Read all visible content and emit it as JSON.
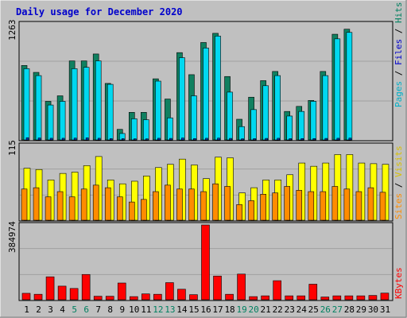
{
  "chart_data": {
    "type": "bar",
    "title": "Daily usage for December 2020",
    "days": [
      "1",
      "2",
      "3",
      "4",
      "5",
      "6",
      "7",
      "8",
      "9",
      "10",
      "11",
      "12",
      "13",
      "14",
      "15",
      "16",
      "17",
      "18",
      "19",
      "20",
      "21",
      "22",
      "23",
      "24",
      "25",
      "26",
      "27",
      "28",
      "29",
      "30",
      "31"
    ],
    "weekend_days": [
      "5",
      "6",
      "12",
      "13",
      "19",
      "20",
      "26",
      "27"
    ],
    "panels": [
      {
        "id": "hits",
        "ymax": 1263,
        "ymax_label": "1263",
        "series": [
          {
            "name": "Hits",
            "color": "#00d0e8",
            "values": [
              790,
              715,
              405,
              425,
              780,
              800,
              895,
              620,
              55,
              220,
              220,
              680,
              220,
              920,
              480,
              1025,
              1140,
              505,
              100,
              330,
              500,
              745,
              265,
              315,
              470,
              680,
              1150,
              1190
            ]
          },
          {
            "name": "Files",
            "color": "#00d0e8",
            "values": []
          },
          {
            "name": "Pages",
            "color": "#00d0e8",
            "values": []
          }
        ]
      }
    ],
    "legend": {
      "top": [
        {
          "label": "Pages",
          "color": "#00c8d8"
        },
        {
          "label": "Files",
          "color": "#0000cc"
        },
        {
          "label": "Hits",
          "color": "#008060"
        }
      ],
      "mid": [
        {
          "label": "Sites",
          "color": "#ff8c00"
        },
        {
          "label": "Visits",
          "color": "#e8d000"
        }
      ],
      "bottom": [
        {
          "label": "KBytes",
          "color": "#ff0000"
        }
      ]
    },
    "hits": [
      810,
      735,
      420,
      480,
      860,
      860,
      935,
      615,
      115,
      300,
      300,
      665,
      445,
      950,
      710,
      1060,
      1160,
      690,
      225,
      465,
      645,
      745,
      310,
      365,
      430,
      745,
      1150,
      1205,
      0,
      0,
      0
    ],
    "files": [
      775,
      700,
      380,
      420,
      775,
      790,
      860,
      605,
      70,
      230,
      220,
      640,
      240,
      895,
      480,
      1000,
      1130,
      520,
      145,
      330,
      590,
      700,
      260,
      310,
      420,
      700,
      1100,
      1170,
      0,
      0,
      0
    ],
    "pages": [
      80,
      70,
      60,
      60,
      65,
      75,
      60,
      50,
      45,
      40,
      40,
      60,
      55,
      70,
      50,
      60,
      65,
      55,
      40,
      45,
      55,
      60,
      45,
      50,
      50,
      55,
      60,
      65,
      0,
      0,
      0
    ],
    "visits": [
      80,
      78,
      62,
      72,
      74,
      84,
      98,
      62,
      56,
      60,
      68,
      81,
      86,
      94,
      85,
      64,
      97,
      96,
      42,
      50,
      62,
      62,
      70,
      88,
      83,
      88,
      101,
      101,
      88,
      87,
      86
    ],
    "sites": [
      48,
      50,
      36,
      44,
      36,
      48,
      54,
      50,
      36,
      28,
      32,
      44,
      54,
      48,
      48,
      44,
      56,
      52,
      24,
      30,
      40,
      42,
      52,
      46,
      44,
      44,
      52,
      48,
      44,
      50,
      43
    ],
    "kbytes": [
      33000,
      28000,
      118000,
      70000,
      58000,
      130000,
      18000,
      18000,
      86000,
      16000,
      30000,
      28000,
      88000,
      54000,
      26000,
      384974,
      122000,
      28000,
      132000,
      16000,
      20000,
      98000,
      20000,
      20000,
      80000,
      14000,
      20000,
      20000,
      20000,
      22000,
      34000
    ],
    "y_labels": {
      "hits": "1263",
      "visits": "115",
      "kbytes": "384974"
    }
  }
}
